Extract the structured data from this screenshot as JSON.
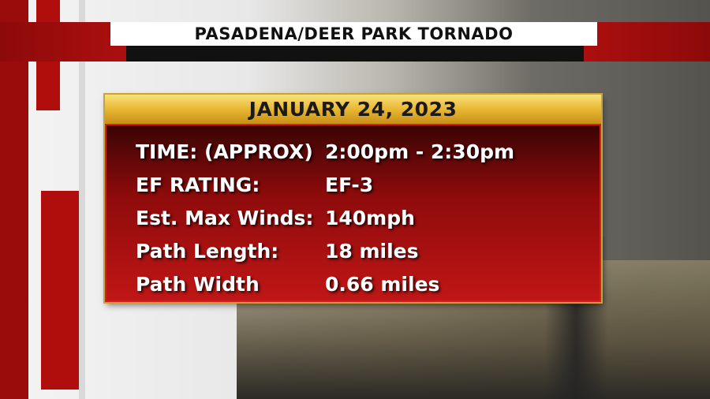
{
  "header": {
    "title": "PASADENA/DEER PARK TORNADO"
  },
  "panel": {
    "date": "JANUARY 24, 2023",
    "rows": [
      [
        "TIME: (APPROX)",
        "2:00pm - 2:30pm"
      ],
      [
        "EF RATING:",
        "EF-3"
      ],
      [
        "Est. Max Winds:",
        "140mph"
      ],
      [
        "Path Length:",
        "18 miles"
      ],
      [
        "Path Width",
        "0.66 miles"
      ]
    ]
  }
}
